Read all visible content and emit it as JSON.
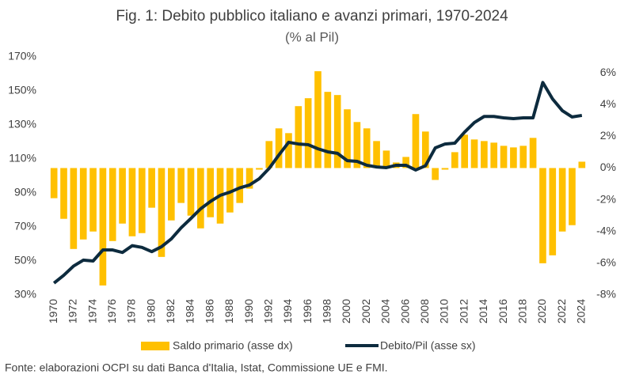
{
  "chart_data": {
    "type": "combo",
    "title": "Fig. 1: Debito pubblico italiano e avanzi primari, 1970-2024",
    "subtitle": "(% al Pil)",
    "source": "Fonte: elaborazioni OCPI su dati Banca d'Italia, Istat, Commissione UE e FMI.",
    "x": [
      1970,
      1971,
      1972,
      1973,
      1974,
      1975,
      1976,
      1977,
      1978,
      1979,
      1980,
      1981,
      1982,
      1983,
      1984,
      1985,
      1986,
      1987,
      1988,
      1989,
      1990,
      1991,
      1992,
      1993,
      1994,
      1995,
      1996,
      1997,
      1998,
      1999,
      2000,
      2001,
      2002,
      2003,
      2004,
      2005,
      2006,
      2007,
      2008,
      2009,
      2010,
      2011,
      2012,
      2013,
      2014,
      2015,
      2016,
      2017,
      2018,
      2019,
      2020,
      2021,
      2022,
      2023,
      2024
    ],
    "xlim": [
      1969.5,
      2024.5
    ],
    "xticks": [
      1970,
      1972,
      1974,
      1976,
      1978,
      1980,
      1982,
      1984,
      1986,
      1988,
      1990,
      1992,
      1994,
      1996,
      1998,
      2000,
      2002,
      2004,
      2006,
      2008,
      2010,
      2012,
      2014,
      2016,
      2018,
      2020,
      2022,
      2024
    ],
    "ylim": [
      30,
      170
    ],
    "yticks": [
      {
        "value": 30,
        "label": "30%"
      },
      {
        "value": 50,
        "label": "50%"
      },
      {
        "value": 70,
        "label": "70%"
      },
      {
        "value": 90,
        "label": "90%"
      },
      {
        "value": 110,
        "label": "110%"
      },
      {
        "value": 130,
        "label": "130%"
      },
      {
        "value": 150,
        "label": "150%"
      },
      {
        "value": 170,
        "label": "170%"
      }
    ],
    "y2lim": [
      -8,
      7
    ],
    "y2ticks": [
      {
        "value": -8,
        "label": "-8%"
      },
      {
        "value": -6,
        "label": "-6%"
      },
      {
        "value": -4,
        "label": "-4%"
      },
      {
        "value": -2,
        "label": "-2%"
      },
      {
        "value": 0,
        "label": "0%"
      },
      {
        "value": 2,
        "label": "2%"
      },
      {
        "value": 4,
        "label": "4%"
      },
      {
        "value": 6,
        "label": "6%"
      }
    ],
    "series": [
      {
        "name": "Saldo primario (asse dx)",
        "type": "bar",
        "axis": "y2",
        "color": "#ffc000",
        "values": [
          -1.9,
          -3.2,
          -5.1,
          -4.5,
          -4.0,
          -7.4,
          -4.6,
          -3.5,
          -4.3,
          -4.1,
          -2.5,
          -5.6,
          -3.3,
          -2.2,
          -3.0,
          -3.8,
          -3.1,
          -3.5,
          -2.8,
          -2.2,
          -1.3,
          -0.1,
          1.7,
          2.5,
          2.2,
          3.9,
          4.4,
          6.1,
          4.8,
          4.6,
          3.7,
          2.9,
          2.5,
          1.7,
          1.1,
          0.35,
          0.7,
          3.4,
          2.3,
          -0.75,
          -0.1,
          1.0,
          2.1,
          1.8,
          1.7,
          1.6,
          1.4,
          1.3,
          1.4,
          1.9,
          -6.0,
          -5.5,
          -4.0,
          -3.6,
          0.4
        ]
      },
      {
        "name": "Debito/Pil (asse sx)",
        "type": "line",
        "axis": "y",
        "color": "#0d2b3e",
        "values": [
          37,
          41.6,
          47,
          50.5,
          50,
          56.5,
          56.5,
          55,
          59,
          58,
          55.5,
          58.4,
          63,
          69.5,
          75,
          80.7,
          85,
          88.6,
          90.5,
          93,
          94.7,
          98.4,
          104.4,
          112.3,
          119.8,
          118.8,
          118.4,
          116,
          114.2,
          113.3,
          109,
          108.6,
          106.3,
          105.3,
          104.9,
          106.3,
          106.3,
          103.5,
          106,
          116.5,
          118.8,
          119.3,
          125.8,
          131.4,
          135,
          135,
          134.2,
          133.7,
          134.2,
          134.2,
          155,
          145.3,
          138.4,
          134.7,
          135.6
        ]
      }
    ]
  }
}
